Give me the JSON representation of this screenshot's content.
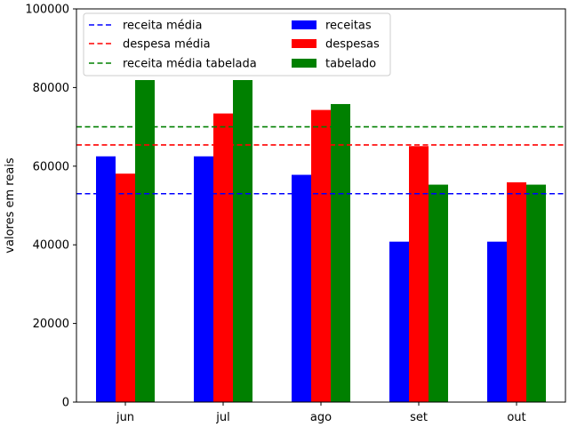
{
  "chart_data": {
    "type": "bar",
    "title": "",
    "xlabel": "",
    "ylabel": "valores em reais",
    "ylim": [
      0,
      100000
    ],
    "yticks": [
      0,
      20000,
      40000,
      60000,
      80000,
      100000
    ],
    "categories": [
      "jun",
      "jul",
      "ago",
      "set",
      "out"
    ],
    "series": [
      {
        "name": "receitas",
        "color": "#0000ff",
        "values": [
          62500,
          62500,
          57800,
          40800,
          40800
        ]
      },
      {
        "name": "despesas",
        "color": "#ff0000",
        "values": [
          58100,
          73400,
          74300,
          65100,
          55900
        ]
      },
      {
        "name": "tabelado",
        "color": "#008000",
        "values": [
          81900,
          81900,
          75800,
          55300,
          55300
        ]
      }
    ],
    "reference_lines": [
      {
        "name": "receita média",
        "color": "#0000ff",
        "value": 53000,
        "style": "dashed"
      },
      {
        "name": "despesa média",
        "color": "#ff0000",
        "value": 65400,
        "style": "dashed"
      },
      {
        "name": "receita média tabelada",
        "color": "#008000",
        "value": 70000,
        "style": "dashed"
      }
    ],
    "legend_position": "top-left",
    "grid": false
  }
}
